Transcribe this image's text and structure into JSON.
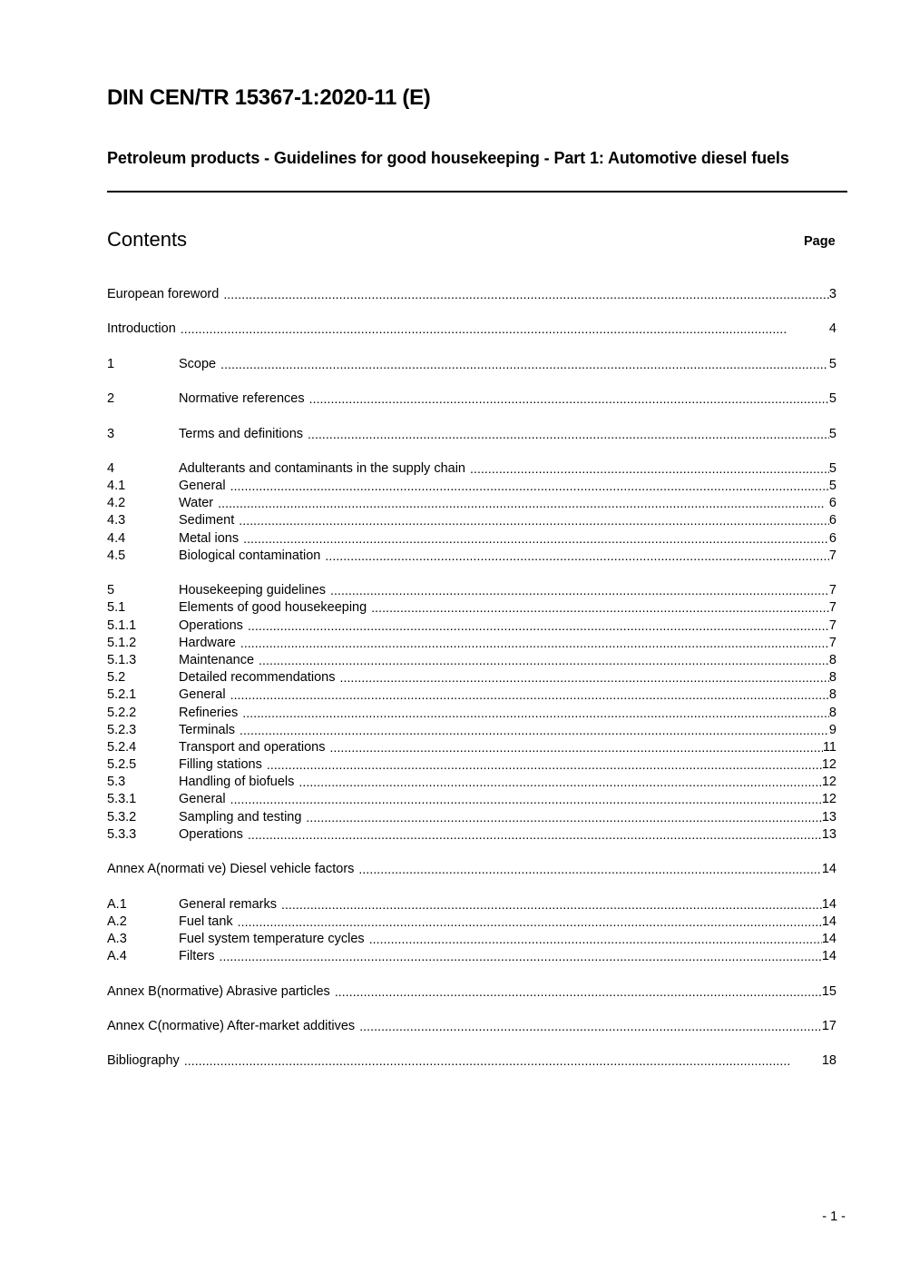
{
  "document": {
    "title": "DIN CEN/TR 15367-1:2020-11 (E)",
    "subtitle": "Petroleum products - Guidelines for good housekeeping - Part 1: Automotive diesel fuels",
    "contents_heading": "Contents",
    "page_heading": "Page",
    "footer_page": "- 1 -"
  },
  "toc": {
    "groups": [
      {
        "entries": [
          {
            "num": "",
            "title": "European foreword",
            "page": "3"
          }
        ]
      },
      {
        "entries": [
          {
            "num": "",
            "title": "Introduction",
            "page": "4"
          }
        ]
      },
      {
        "entries": [
          {
            "num": "1",
            "title": "Scope",
            "page": "5"
          }
        ]
      },
      {
        "entries": [
          {
            "num": "2",
            "title": "Normative references",
            "page": "5"
          }
        ]
      },
      {
        "entries": [
          {
            "num": "3",
            "title": "Terms and definitions",
            "page": "5"
          }
        ]
      },
      {
        "entries": [
          {
            "num": "4",
            "title": "Adulterants and contaminants in the supply chain",
            "page": "5"
          },
          {
            "num": "4.1",
            "title": "General",
            "page": "5"
          },
          {
            "num": "4.2",
            "title": "Water",
            "page": "6"
          },
          {
            "num": "4.3",
            "title": "Sediment",
            "page": "6"
          },
          {
            "num": "4.4",
            "title": "Metal ions",
            "page": "6"
          },
          {
            "num": "4.5",
            "title": "Biological contamination",
            "page": "7"
          }
        ]
      },
      {
        "entries": [
          {
            "num": "5",
            "title": "Housekeeping guidelines",
            "page": "7"
          },
          {
            "num": "5.1",
            "title": "Elements of good housekeeping",
            "page": "7"
          },
          {
            "num": "5.1.1",
            "title": "Operations",
            "page": "7"
          },
          {
            "num": "5.1.2",
            "title": "Hardware",
            "page": "7"
          },
          {
            "num": "5.1.3",
            "title": "Maintenance",
            "page": "8"
          },
          {
            "num": "5.2",
            "title": "Detailed recommendations",
            "page": "8"
          },
          {
            "num": "5.2.1",
            "title": "General",
            "page": "8"
          },
          {
            "num": "5.2.2",
            "title": "Refineries",
            "page": "8"
          },
          {
            "num": "5.2.3",
            "title": "Terminals",
            "page": "9"
          },
          {
            "num": "5.2.4",
            "title": "Transport and operations",
            "page": "11"
          },
          {
            "num": "5.2.5",
            "title": "Filling stations",
            "page": "12"
          },
          {
            "num": "5.3",
            "title": "Handling of biofuels",
            "page": "12"
          },
          {
            "num": "5.3.1",
            "title": "General",
            "page": "12"
          },
          {
            "num": "5.3.2",
            "title": "Sampling and testing",
            "page": "13"
          },
          {
            "num": "5.3.3",
            "title": "Operations",
            "page": "13"
          }
        ]
      },
      {
        "entries": [
          {
            "num": "",
            "title": "Annex A(normati ve) Diesel vehicle factors",
            "page": "14"
          }
        ]
      },
      {
        "entries": [
          {
            "num": "A.1",
            "title": "General remarks",
            "page": "14"
          },
          {
            "num": "A.2",
            "title": "Fuel tank",
            "page": "14"
          },
          {
            "num": "A.3",
            "title": "Fuel system temperature cycles",
            "page": "14"
          },
          {
            "num": "A.4",
            "title": "Filters",
            "page": "14"
          }
        ]
      },
      {
        "entries": [
          {
            "num": "",
            "title": "Annex B(normative) Abrasive particles",
            "page": "15"
          }
        ]
      },
      {
        "entries": [
          {
            "num": "",
            "title": "Annex C(normative) After-market additives",
            "page": "17"
          }
        ]
      },
      {
        "entries": [
          {
            "num": "",
            "title": "Bibliography",
            "page": "18"
          }
        ]
      }
    ]
  }
}
